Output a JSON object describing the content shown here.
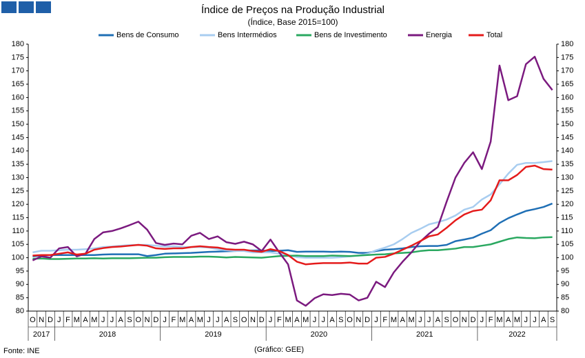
{
  "chart_data": {
    "type": "line",
    "title": "Índice de Preços na Produção Industrial",
    "subtitle": "(Índice, Base 2015=100)",
    "source": "Fonte: INE",
    "credit": "(Gráfico: GEE)",
    "categories": [
      "O",
      "N",
      "D",
      "J",
      "F",
      "M",
      "A",
      "M",
      "J",
      "J",
      "A",
      "S",
      "O",
      "N",
      "D",
      "J",
      "F",
      "M",
      "A",
      "M",
      "J",
      "J",
      "A",
      "S",
      "O",
      "N",
      "D",
      "J",
      "F",
      "M",
      "A",
      "M",
      "J",
      "J",
      "A",
      "S",
      "O",
      "N",
      "D",
      "J",
      "F",
      "M",
      "A",
      "M",
      "J",
      "J",
      "A",
      "S",
      "O",
      "N",
      "D",
      "J",
      "F",
      "M",
      "A",
      "M",
      "J",
      "J",
      "A",
      "S"
    ],
    "year_groups": [
      {
        "label": "2017",
        "span": 3
      },
      {
        "label": "2018",
        "span": 12
      },
      {
        "label": "2019",
        "span": 12
      },
      {
        "label": "2020",
        "span": 12
      },
      {
        "label": "2021",
        "span": 12
      },
      {
        "label": "2022",
        "span": 9
      }
    ],
    "ylim": [
      80,
      180
    ],
    "yticks": [
      80,
      85,
      90,
      95,
      100,
      105,
      110,
      115,
      120,
      125,
      130,
      135,
      140,
      145,
      150,
      155,
      160,
      165,
      170,
      175,
      180
    ],
    "y2lim": [
      80,
      180
    ],
    "y2ticks": [
      80,
      85,
      90,
      95,
      100,
      105,
      110,
      115,
      120,
      125,
      130,
      135,
      140,
      145,
      150,
      155,
      160,
      165,
      170,
      175,
      180
    ],
    "grid": false,
    "legend": "top",
    "series": [
      {
        "name": "Bens de Consumo",
        "color": "#1f6fb5",
        "values": [
          100.5,
          100.8,
          101,
          101,
          101,
          101,
          101,
          101,
          101.2,
          101.3,
          101.3,
          101.3,
          101.3,
          100.6,
          101,
          101.5,
          101.6,
          101.7,
          101.8,
          102,
          102.2,
          102.3,
          102.4,
          102.5,
          102.7,
          102.7,
          102.7,
          102.5,
          102.6,
          102.8,
          102.2,
          102.3,
          102.3,
          102.3,
          102.2,
          102.3,
          102.2,
          101.8,
          101.8,
          102.5,
          103,
          103.2,
          103.5,
          104,
          104.3,
          104.4,
          104.4,
          104.8,
          106.2,
          106.8,
          107.5,
          109,
          110.3,
          113,
          114.8,
          116.2,
          117.5,
          118.2,
          119,
          120.3
        ]
      },
      {
        "name": "Bens Intermédios",
        "color": "#a8cdf0",
        "values": [
          102,
          102.6,
          102.6,
          102.8,
          103,
          103,
          103.2,
          103.5,
          104,
          104.2,
          104.5,
          104.7,
          104.8,
          104.8,
          104.5,
          104.2,
          104.3,
          104,
          104,
          104,
          103.8,
          103.2,
          102.8,
          102.5,
          102.5,
          102,
          102,
          102,
          101.5,
          101,
          100.2,
          100,
          100,
          100,
          100,
          100.2,
          100.5,
          100.8,
          101.5,
          102.8,
          103.8,
          105,
          107,
          109.3,
          110.8,
          112.5,
          113.3,
          114.3,
          115.8,
          118,
          119,
          121.8,
          123.7,
          127.5,
          131.5,
          134.8,
          135.5,
          135.5,
          135.8,
          136.2
        ]
      },
      {
        "name": "Bens de Investimento",
        "color": "#2aa860",
        "values": [
          99.6,
          99.7,
          99.5,
          99.5,
          99.6,
          99.7,
          99.7,
          99.8,
          99.7,
          99.8,
          99.8,
          99.8,
          99.9,
          100,
          100,
          100.2,
          100.3,
          100.3,
          100.3,
          100.4,
          100.4,
          100.3,
          100.1,
          100.3,
          100.2,
          100.1,
          100,
          100.3,
          100.6,
          100.7,
          100.8,
          100.6,
          100.6,
          100.6,
          100.8,
          100.7,
          100.6,
          100.8,
          101,
          101.2,
          101.3,
          101.6,
          101.8,
          102,
          102.5,
          102.8,
          102.8,
          103.1,
          103.4,
          104,
          104,
          104.5,
          105,
          106,
          107,
          107.6,
          107.4,
          107.3,
          107.6,
          107.7
        ]
      },
      {
        "name": "Energia",
        "color": "#7b1a7f",
        "values": [
          99,
          100.5,
          100,
          103.5,
          104,
          100.5,
          101.5,
          107,
          109.5,
          110,
          111,
          112.2,
          113.5,
          110.5,
          105.5,
          104.8,
          105.3,
          105,
          108.2,
          109.3,
          107,
          108,
          105.8,
          105.2,
          106,
          105,
          102.5,
          106.8,
          102,
          97.5,
          84,
          82,
          84.8,
          86.3,
          86,
          86.5,
          86.2,
          84,
          85,
          91,
          89,
          94.5,
          98.5,
          102,
          106,
          109,
          111.5,
          121,
          130,
          135.5,
          139.5,
          133.2,
          143.5,
          172,
          159,
          160.5,
          172.5,
          175.3,
          167,
          162.8
        ]
      },
      {
        "name": "Total",
        "color": "#e41b1b",
        "values": [
          100.8,
          101,
          101,
          101.5,
          102,
          101.2,
          101.5,
          103,
          103.6,
          104,
          104.2,
          104.5,
          104.8,
          104.5,
          103.5,
          103.3,
          103.5,
          103.5,
          104,
          104.3,
          104,
          103.8,
          103.2,
          103,
          103,
          102.5,
          102.2,
          103.2,
          102.5,
          101,
          98.5,
          97.5,
          97.8,
          98,
          98,
          98,
          98.2,
          97.8,
          97.8,
          100,
          100.3,
          101.5,
          103,
          104.5,
          106.2,
          108,
          108.7,
          111.2,
          114,
          116.2,
          117.5,
          118,
          121.5,
          129,
          129,
          131,
          134,
          134.5,
          133.2,
          133
        ]
      }
    ]
  }
}
